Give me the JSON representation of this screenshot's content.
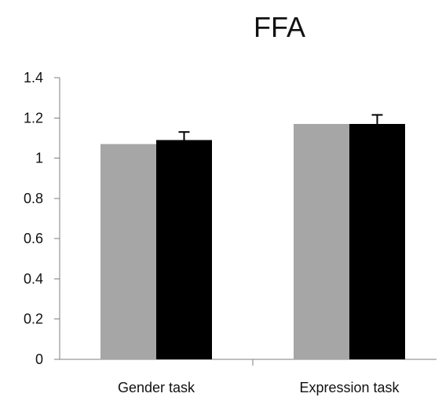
{
  "chart_data": {
    "type": "bar",
    "title": "FFA",
    "xlabel": "",
    "ylabel": "",
    "categories": [
      "Gender task",
      "Expression task"
    ],
    "series": [
      {
        "color": "#a6a6a6",
        "values": [
          1.07,
          1.17
        ],
        "errors": [
          0.0,
          0.0
        ]
      },
      {
        "color": "#000000",
        "values": [
          1.09,
          1.17
        ],
        "errors": [
          0.04,
          0.045
        ]
      }
    ],
    "ylim": [
      0,
      1.4
    ],
    "yticks": [
      0,
      0.2,
      0.4,
      0.6,
      0.8,
      1,
      1.2,
      1.4
    ],
    "ytick_labels": [
      "0",
      "0.2",
      "0.4",
      "0.6",
      "0.8",
      "1",
      "1.2",
      "1.4"
    ],
    "grid": false,
    "legend": "none"
  }
}
